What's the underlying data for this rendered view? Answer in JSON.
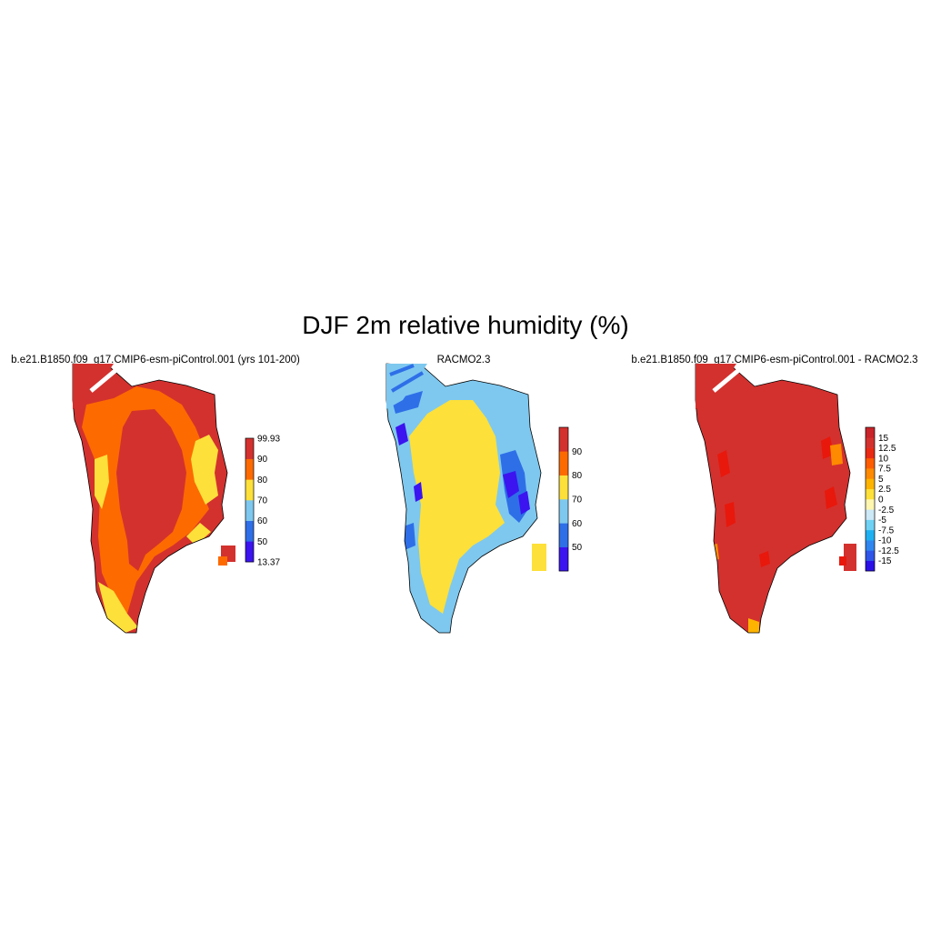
{
  "title": "DJF 2m relative humidity (%)",
  "panels": [
    {
      "id": "model",
      "subtitle": "b.e21.B1850.f09_g17.CMIP6-esm-piControl.001 (yrs 101-200)"
    },
    {
      "id": "obs",
      "subtitle": "RACMO2.3"
    },
    {
      "id": "diff",
      "subtitle": "b.e21.B1850.f09_g17.CMIP6-esm-piControl.001 - RACMO2.3"
    }
  ],
  "chart_data": [
    {
      "type": "heatmap",
      "title": "b.e21.B1850.f09_g17.CMIP6-esm-piControl.001 (yrs 101-200)",
      "variable": "DJF 2m relative humidity (%)",
      "colorbar": {
        "min_label": "13.37",
        "max_label": "99.93",
        "levels": [
          50,
          60,
          70,
          80,
          90
        ],
        "tick_labels": [
          "99.93",
          "90",
          "80",
          "70",
          "60",
          "50",
          "13.37"
        ],
        "colors": [
          "#3b14f0",
          "#2e6fe8",
          "#7ec8ef",
          "#fde03a",
          "#fd6a00",
          "#d3312e"
        ]
      },
      "pattern": "Interior ice sheet mostly 90-99.93; margins 80-90 with 70-80 strips on east coast and southern tip"
    },
    {
      "type": "heatmap",
      "title": "RACMO2.3",
      "variable": "DJF 2m relative humidity (%)",
      "colorbar": {
        "levels": [
          50,
          60,
          70,
          80,
          90
        ],
        "tick_labels": [
          "90",
          "80",
          "70",
          "60",
          "50"
        ],
        "colors": [
          "#3b14f0",
          "#2e6fe8",
          "#7ec8ef",
          "#fde03a",
          "#fd6a00",
          "#d3312e"
        ]
      },
      "pattern": "Interior mostly 70-80; margins 60-70 with 50-60 patches; lowest values (<50) on the east coast"
    },
    {
      "type": "heatmap",
      "title": "b.e21.B1850.f09_g17.CMIP6-esm-piControl.001 - RACMO2.3",
      "variable": "DJF 2m relative humidity difference (%)",
      "colorbar": {
        "levels": [
          -15,
          -12.5,
          -10,
          -7.5,
          -5,
          -2.5,
          0,
          2.5,
          5,
          7.5,
          10,
          12.5,
          15
        ],
        "tick_labels": [
          "15",
          "12.5",
          "10",
          "7.5",
          "5",
          "2.5",
          "0",
          "-2.5",
          "-5",
          "-7.5",
          "-10",
          "-12.5",
          "-15"
        ],
        "colors": [
          "#2a10e6",
          "#2e55e8",
          "#2f86ee",
          "#1fb0f2",
          "#6fd2f5",
          "#cde8f7",
          "#fff6b0",
          "#fde03a",
          "#fdb400",
          "#fd8a00",
          "#fd5d00",
          "#e82a14",
          "#d3312e",
          "#c8242a"
        ]
      },
      "pattern": "Nearly entirely > 15 over the ice sheet, with 10-15 patches along the margins"
    }
  ]
}
